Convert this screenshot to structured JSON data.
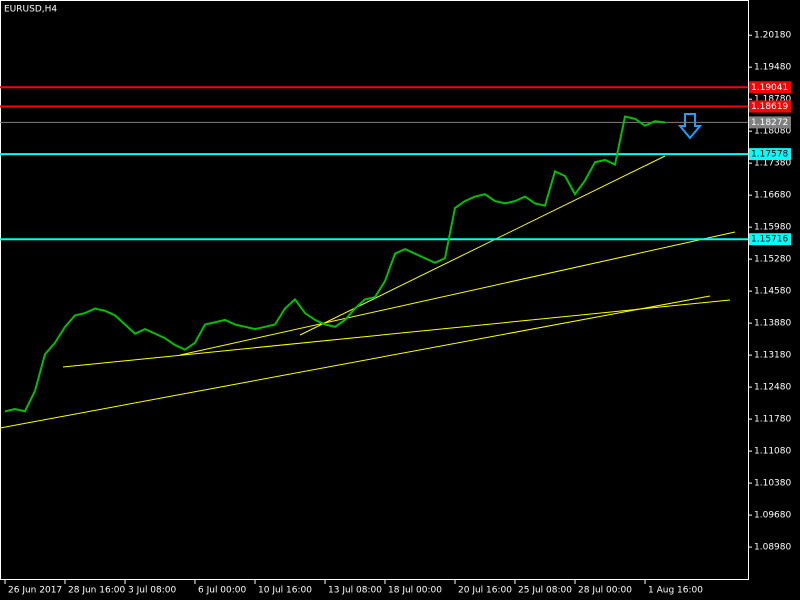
{
  "chart_data": {
    "type": "line",
    "title": "EURUSD,H4",
    "color": "#00c000",
    "values": [
      1.1195,
      1.12,
      1.1195,
      1.124,
      1.132,
      1.1345,
      1.138,
      1.1405,
      1.141,
      1.142,
      1.1415,
      1.1405,
      1.1385,
      1.1365,
      1.1375,
      1.1365,
      1.1355,
      1.134,
      1.133,
      1.1345,
      1.1385,
      1.139,
      1.1395,
      1.1385,
      1.138,
      1.1375,
      1.138,
      1.1385,
      1.142,
      1.144,
      1.141,
      1.1395,
      1.1385,
      1.138,
      1.1395,
      1.142,
      1.144,
      1.1445,
      1.148,
      1.154,
      1.155,
      1.154,
      1.153,
      1.152,
      1.153,
      1.164,
      1.1655,
      1.1665,
      1.167,
      1.1655,
      1.165,
      1.1655,
      1.1665,
      1.165,
      1.1645,
      1.172,
      1.171,
      1.167,
      1.17,
      1.174,
      1.1745,
      1.1735,
      1.184,
      1.1835,
      1.182,
      1.183,
      1.1827
    ],
    "xlim": [
      -0.5,
      74.3
    ],
    "xticks": [
      {
        "value": 0,
        "label": "26 Jun 2017"
      },
      {
        "value": 6,
        "label": "28 Jun 16:00"
      },
      {
        "value": 12,
        "label": "3 Jul 08:00"
      },
      {
        "value": 19,
        "label": "6 Jul 00:00"
      },
      {
        "value": 25,
        "label": "10 Jul 16:00"
      },
      {
        "value": 32,
        "label": "13 Jul 08:00"
      },
      {
        "value": 38,
        "label": "18 Jul 00:00"
      },
      {
        "value": 45,
        "label": "20 Jul 16:00"
      },
      {
        "value": 51,
        "label": "25 Jul 08:00"
      },
      {
        "value": 57,
        "label": "28 Jul 00:00"
      },
      {
        "value": 64,
        "label": "1 Aug 16:00"
      }
    ],
    "ylim": [
      1.0826,
      1.2095
    ],
    "yticks": [
      {
        "value": 1.2018,
        "label": "1.20180"
      },
      {
        "value": 1.1948,
        "label": "1.19480"
      },
      {
        "value": 1.1878,
        "label": "1.18780"
      },
      {
        "value": 1.1808,
        "label": "1.18080"
      },
      {
        "value": 1.1738,
        "label": "1.17380"
      },
      {
        "value": 1.1668,
        "label": "1.16680"
      },
      {
        "value": 1.1598,
        "label": "1.15980"
      },
      {
        "value": 1.1528,
        "label": "1.15280"
      },
      {
        "value": 1.1458,
        "label": "1.14580"
      },
      {
        "value": 1.1388,
        "label": "1.13880"
      },
      {
        "value": 1.1318,
        "label": "1.13180"
      },
      {
        "value": 1.1248,
        "label": "1.12480"
      },
      {
        "value": 1.1178,
        "label": "1.11780"
      },
      {
        "value": 1.1108,
        "label": "1.11080"
      },
      {
        "value": 1.1038,
        "label": "1.10380"
      },
      {
        "value": 1.0968,
        "label": "1.09680"
      },
      {
        "value": 1.0898,
        "label": "1.08980"
      }
    ],
    "levels": [
      {
        "value": 1.19041,
        "color": "#ff0000"
      },
      {
        "value": 1.18619,
        "color": "#ff0000"
      },
      {
        "value": 1.18272,
        "color": "#808080"
      },
      {
        "value": 1.17578,
        "color": "#00ffff"
      },
      {
        "value": 1.15716,
        "color": "#00ffff"
      }
    ]
  }
}
